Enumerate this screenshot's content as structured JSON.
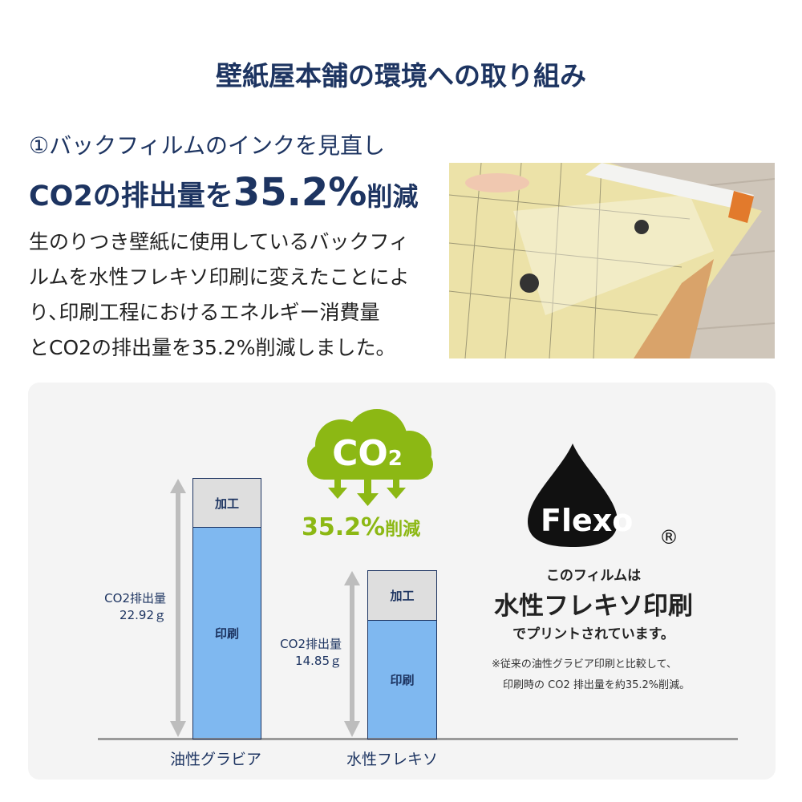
{
  "title": "壁紙屋本舗の環境への取り組み",
  "section": {
    "heading_line1": "①バックフィルムのインクを見直し",
    "heading_line2_prefix": "CO2の排出量を",
    "heading_line2_highlight": "35.2%",
    "heading_line2_suffix": "削減",
    "body_lines": [
      "生のりつき壁紙に使用しているバックフィ",
      "ルムを水性フレキソ印刷に変えたことによ",
      "り､印刷工程におけるエネルギー消費量",
      "とCO2の排出量を35.2%削減しました。"
    ]
  },
  "co2_icon": {
    "text": "CO",
    "subscript": "2",
    "color": "#8cb814",
    "icon": "cloud-co2-down-arrows"
  },
  "reduction": {
    "value": "35.2%",
    "suffix": "削減"
  },
  "chart_data": {
    "type": "bar",
    "stacked": true,
    "categories": [
      "油性グラビア",
      "水性フレキソ"
    ],
    "segment_labels": [
      "印刷",
      "加工"
    ],
    "totals": [
      22.92,
      14.85
    ],
    "total_labels": [
      {
        "line1": "CO2排出量",
        "line2": "22.92ｇ"
      },
      {
        "line1": "CO2排出量",
        "line2": "14.85ｇ"
      }
    ],
    "colors": {
      "印刷": "#7fb8f0",
      "加工": "#dedede"
    }
  },
  "flexo": {
    "logo_text": "Flexo",
    "registered": "®",
    "line1": "このフィルムは",
    "line2": "水性フレキソ印刷",
    "line3": "でプリントされています。",
    "note1": "※従来の油性グラビア印刷と比較して、",
    "note2": "印刷時の CO2 排出量を約35.2%削減。"
  }
}
